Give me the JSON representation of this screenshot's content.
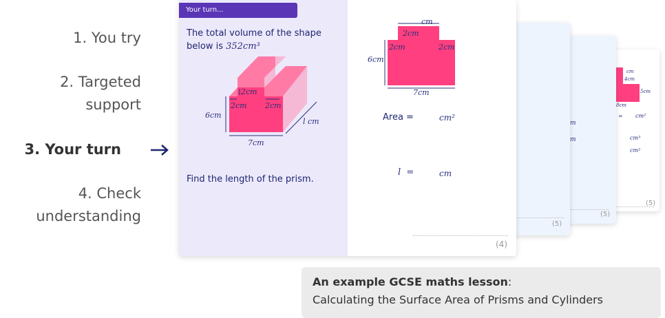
{
  "steps": [
    {
      "label": "1. You try"
    },
    {
      "label": "2. Targeted support"
    },
    {
      "label": "3. Your turn",
      "active": true,
      "arrow": "arrow-right-icon"
    },
    {
      "label": "4. Check understanding"
    }
  ],
  "card": {
    "tab": "Your turn...",
    "question": "The total volume of the shape below is",
    "volume": "352cm³",
    "dims": {
      "top": "2cm",
      "left_step": "2cm",
      "right_step": "2cm",
      "height": "6cm",
      "width": "7cm",
      "length": "l cm"
    },
    "find": "Find the length of the prism.",
    "cross_section": {
      "top": "cm",
      "notch": "2cm",
      "left": "2cm",
      "right": "2cm",
      "height": "6cm",
      "width": "7cm"
    },
    "area_label": "Area =",
    "area_unit": "cm²",
    "l_label": "l  =",
    "l_unit": "cm",
    "marks": "(4)"
  },
  "back_cards": [
    {
      "marks": "(5)",
      "units": [
        "m",
        "m"
      ]
    },
    {
      "marks": "(5)"
    },
    {
      "marks": "(5)",
      "dims": [
        "cm",
        "cm",
        "4cm",
        "5cm",
        "8cm"
      ],
      "units": [
        "=",
        "cm²",
        "cm³",
        "cm²"
      ]
    }
  ],
  "caption": {
    "bold": "An example GCSE maths lesson",
    "title": "Calculating the Surface Area of Prisms and Cylinders"
  },
  "colors": {
    "accent": "#5a35b5",
    "pink": "#ff3f7f",
    "lavender": "#ece9fb",
    "navy": "#1e2570"
  }
}
